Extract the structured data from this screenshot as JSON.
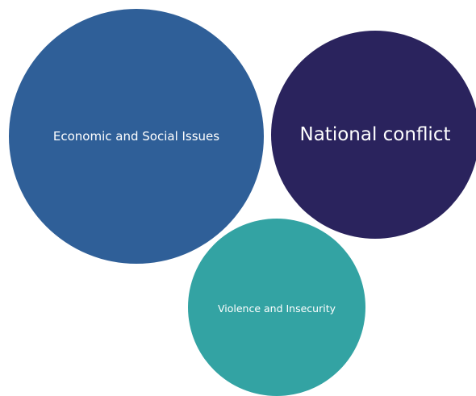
{
  "bubbles": {
    "economic": {
      "label": "Economic and Social Issues",
      "color": "#2f5f98"
    },
    "national": {
      "label": "National conflict",
      "color": "#2a235d"
    },
    "violence": {
      "label": "Violence and Insecurity",
      "color": "#33a3a3"
    }
  }
}
